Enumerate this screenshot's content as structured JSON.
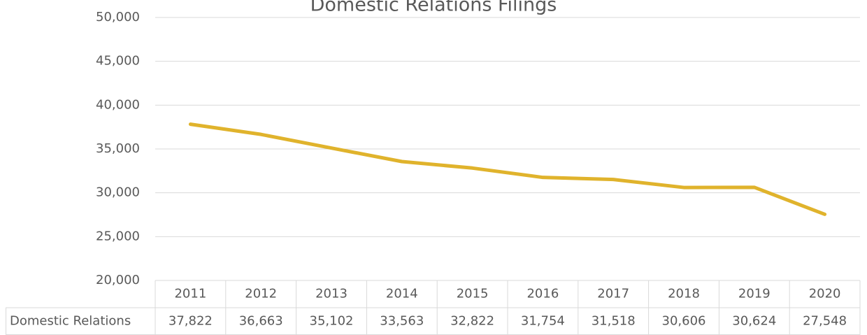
{
  "chart_data": {
    "type": "line",
    "title": "Domestic Relations Filings",
    "categories": [
      "2011",
      "2012",
      "2013",
      "2014",
      "2015",
      "2016",
      "2017",
      "2018",
      "2019",
      "2020"
    ],
    "series": [
      {
        "name": "Domestic Relations",
        "color": "#e0b32c",
        "values": [
          37822,
          36663,
          35102,
          33563,
          32822,
          31754,
          31518,
          30606,
          30624,
          27548
        ],
        "value_labels": [
          "37,822",
          "36,663",
          "35,102",
          "33,563",
          "32,822",
          "31,754",
          "31,518",
          "30,606",
          "30,624",
          "27,548"
        ]
      }
    ],
    "ylim": [
      20000,
      50000
    ],
    "yticks": [
      {
        "value": 20000,
        "label": "20,000"
      },
      {
        "value": 25000,
        "label": "25,000"
      },
      {
        "value": 30000,
        "label": "30,000"
      },
      {
        "value": 35000,
        "label": "35,000"
      },
      {
        "value": 40000,
        "label": "40,000"
      },
      {
        "value": 45000,
        "label": "45,000"
      },
      {
        "value": 50000,
        "label": "50,000"
      }
    ],
    "grid": true
  }
}
